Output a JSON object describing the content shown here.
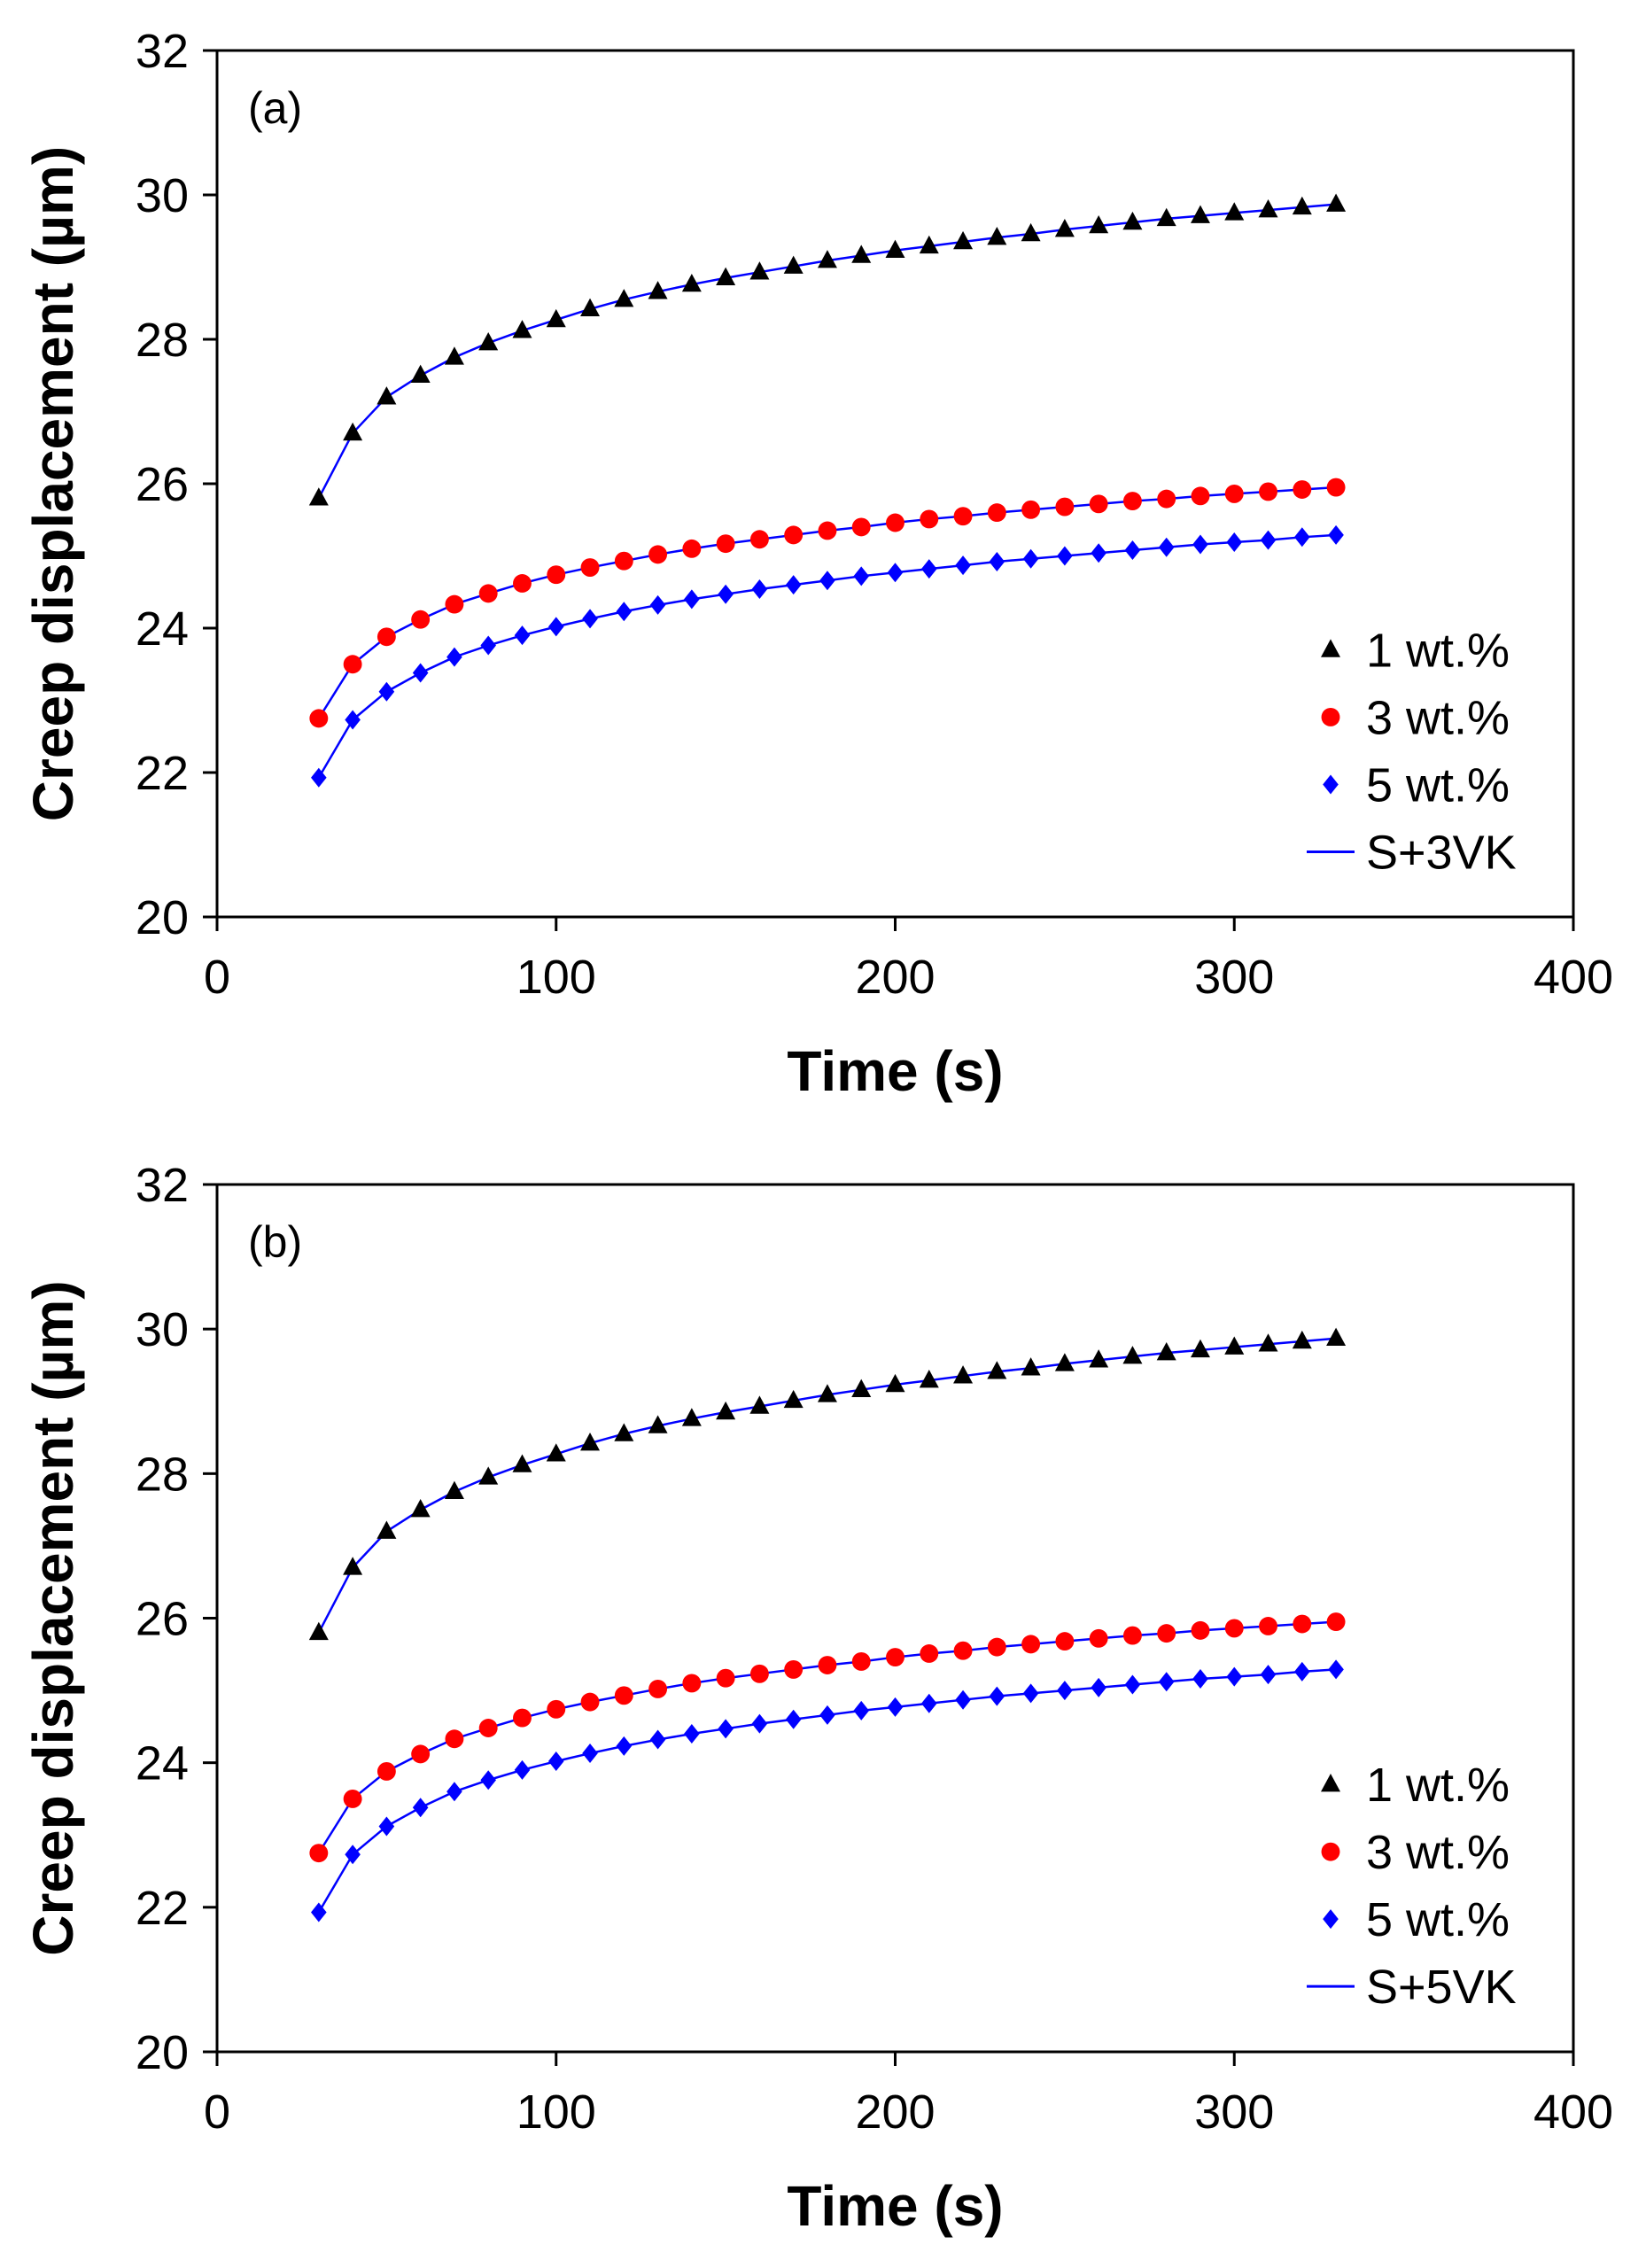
{
  "chart_data": [
    {
      "type": "scatter",
      "panel_label": "(a)",
      "xlabel": "Time (s)",
      "ylabel": "Creep displacement (µm)",
      "xlim": [
        0,
        400
      ],
      "ylim": [
        20,
        32
      ],
      "xticks": [
        0,
        100,
        200,
        300,
        400
      ],
      "yticks": [
        20,
        22,
        24,
        26,
        28,
        30,
        32
      ],
      "legend_position": "bottom-right",
      "fit_label": "S+3VK",
      "x": [
        30,
        40,
        50,
        60,
        70,
        80,
        90,
        100,
        110,
        120,
        130,
        140,
        150,
        160,
        170,
        180,
        190,
        200,
        210,
        220,
        230,
        240,
        250,
        260,
        270,
        280,
        290,
        300,
        310,
        320,
        330
      ],
      "series": [
        {
          "name": "1 wt.%",
          "marker": "triangle",
          "color": "#000000",
          "values": [
            25.8,
            26.7,
            27.2,
            27.5,
            27.75,
            27.95,
            28.12,
            28.27,
            28.42,
            28.55,
            28.66,
            28.76,
            28.85,
            28.93,
            29.01,
            29.09,
            29.16,
            29.23,
            29.29,
            29.35,
            29.41,
            29.46,
            29.52,
            29.57,
            29.62,
            29.67,
            29.71,
            29.75,
            29.79,
            29.83,
            29.87
          ]
        },
        {
          "name": "3 wt.%",
          "marker": "circle",
          "color": "#ff0000",
          "values": [
            22.75,
            23.5,
            23.88,
            24.12,
            24.33,
            24.48,
            24.62,
            24.74,
            24.84,
            24.93,
            25.02,
            25.1,
            25.17,
            25.23,
            25.29,
            25.35,
            25.4,
            25.46,
            25.51,
            25.55,
            25.6,
            25.64,
            25.68,
            25.72,
            25.76,
            25.79,
            25.83,
            25.86,
            25.89,
            25.92,
            25.95
          ]
        },
        {
          "name": "5 wt.%",
          "marker": "diamond",
          "color": "#0000ff",
          "values": [
            21.93,
            22.73,
            23.12,
            23.38,
            23.6,
            23.76,
            23.9,
            24.02,
            24.13,
            24.23,
            24.32,
            24.4,
            24.47,
            24.54,
            24.6,
            24.66,
            24.72,
            24.77,
            24.82,
            24.87,
            24.92,
            24.96,
            25.0,
            25.04,
            25.08,
            25.12,
            25.16,
            25.19,
            25.22,
            25.26,
            25.29
          ]
        }
      ],
      "fit_color": "#0000ff"
    },
    {
      "type": "scatter",
      "panel_label": "(b)",
      "xlabel": "Time (s)",
      "ylabel": "Creep displacement (µm)",
      "xlim": [
        0,
        400
      ],
      "ylim": [
        20,
        32
      ],
      "xticks": [
        0,
        100,
        200,
        300,
        400
      ],
      "yticks": [
        20,
        22,
        24,
        26,
        28,
        30,
        32
      ],
      "legend_position": "bottom-right",
      "fit_label": "S+5VK",
      "x": [
        30,
        40,
        50,
        60,
        70,
        80,
        90,
        100,
        110,
        120,
        130,
        140,
        150,
        160,
        170,
        180,
        190,
        200,
        210,
        220,
        230,
        240,
        250,
        260,
        270,
        280,
        290,
        300,
        310,
        320,
        330
      ],
      "series": [
        {
          "name": "1 wt.%",
          "marker": "triangle",
          "color": "#000000",
          "values": [
            25.8,
            26.7,
            27.2,
            27.5,
            27.75,
            27.95,
            28.12,
            28.27,
            28.42,
            28.55,
            28.66,
            28.76,
            28.85,
            28.93,
            29.01,
            29.09,
            29.16,
            29.23,
            29.29,
            29.35,
            29.41,
            29.46,
            29.52,
            29.57,
            29.62,
            29.67,
            29.71,
            29.75,
            29.79,
            29.83,
            29.87
          ]
        },
        {
          "name": "3 wt.%",
          "marker": "circle",
          "color": "#ff0000",
          "values": [
            22.75,
            23.5,
            23.88,
            24.12,
            24.33,
            24.48,
            24.62,
            24.74,
            24.84,
            24.93,
            25.02,
            25.1,
            25.17,
            25.23,
            25.29,
            25.35,
            25.4,
            25.46,
            25.51,
            25.55,
            25.6,
            25.64,
            25.68,
            25.72,
            25.76,
            25.79,
            25.83,
            25.86,
            25.89,
            25.92,
            25.95
          ]
        },
        {
          "name": "5 wt.%",
          "marker": "diamond",
          "color": "#0000ff",
          "values": [
            21.93,
            22.73,
            23.12,
            23.38,
            23.6,
            23.76,
            23.9,
            24.02,
            24.13,
            24.23,
            24.32,
            24.4,
            24.47,
            24.54,
            24.6,
            24.66,
            24.72,
            24.77,
            24.82,
            24.87,
            24.92,
            24.96,
            25.0,
            25.04,
            25.08,
            25.12,
            25.16,
            25.19,
            25.22,
            25.26,
            25.29
          ]
        }
      ],
      "fit_color": "#0000ff"
    }
  ]
}
